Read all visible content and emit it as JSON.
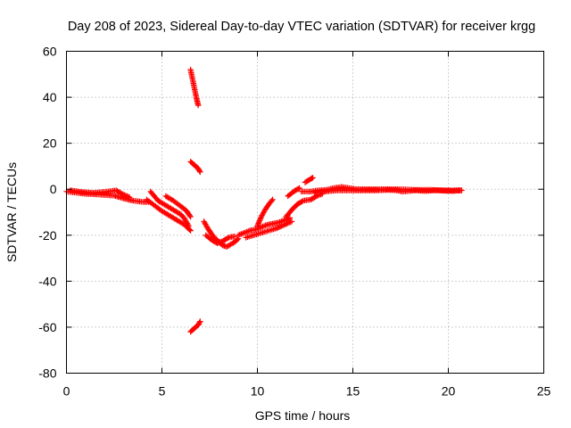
{
  "chart_data": {
    "type": "scatter",
    "title": "Day 208 of 2023, Sidereal Day-to-day VTEC variation (SDTVAR) for receiver krgg",
    "xlabel": "GPS time / hours",
    "ylabel": "SDTVAR / TECUs",
    "xlim": [
      0,
      25
    ],
    "ylim": [
      -80,
      60
    ],
    "xticks": [
      0,
      5,
      10,
      15,
      20,
      25
    ],
    "yticks": [
      -80,
      -60,
      -40,
      -20,
      0,
      20,
      40,
      60
    ],
    "grid": true,
    "marker": "+",
    "colors": {
      "series": "#ff0000",
      "grid": "#a0a0a0",
      "axis": "#000000"
    },
    "series": [
      {
        "name": "SDTVAR",
        "segments": [
          [
            [
              0.0,
              -1.0
            ],
            [
              0.5,
              -1.5
            ],
            [
              1.0,
              -2.0
            ],
            [
              1.5,
              -2.2
            ],
            [
              2.0,
              -2.5
            ],
            [
              2.5,
              -2.8
            ],
            [
              3.0,
              -4.0
            ],
            [
              3.5,
              -5.0
            ],
            [
              4.0,
              -5.5
            ],
            [
              4.3,
              -5.5
            ]
          ],
          [
            [
              0.2,
              -0.5
            ],
            [
              0.8,
              -1.2
            ],
            [
              1.4,
              -1.6
            ],
            [
              2.2,
              -1.0
            ],
            [
              2.6,
              -0.5
            ],
            [
              2.9,
              -2.0
            ],
            [
              3.3,
              -3.5
            ]
          ],
          [
            [
              4.4,
              -1.0
            ],
            [
              4.6,
              -3.0
            ],
            [
              4.8,
              -5.0
            ],
            [
              5.2,
              -7.0
            ],
            [
              5.6,
              -9.0
            ],
            [
              6.0,
              -11.0
            ],
            [
              6.2,
              -13.0
            ],
            [
              6.4,
              -16.0
            ]
          ],
          [
            [
              4.2,
              -4.5
            ],
            [
              4.6,
              -7.0
            ],
            [
              5.0,
              -9.5
            ],
            [
              5.4,
              -11.5
            ],
            [
              5.8,
              -13.5
            ],
            [
              6.2,
              -15.5
            ],
            [
              6.5,
              -18.0
            ]
          ],
          [
            [
              5.2,
              -3.0
            ],
            [
              5.6,
              -5.0
            ],
            [
              6.0,
              -7.5
            ],
            [
              6.3,
              -9.5
            ],
            [
              6.5,
              -12.0
            ]
          ],
          [
            [
              6.5,
              52.0
            ],
            [
              6.6,
              48.0
            ],
            [
              6.7,
              44.0
            ],
            [
              6.8,
              40.0
            ],
            [
              6.9,
              36.5
            ]
          ],
          [
            [
              6.5,
              12.0
            ],
            [
              6.7,
              10.5
            ],
            [
              6.9,
              9.0
            ],
            [
              7.0,
              7.5
            ]
          ],
          [
            [
              6.5,
              -62.0
            ],
            [
              6.7,
              -60.5
            ],
            [
              6.9,
              -59.0
            ],
            [
              7.0,
              -57.5
            ]
          ],
          [
            [
              7.2,
              -14.0
            ],
            [
              7.4,
              -17.0
            ],
            [
              7.6,
              -19.5
            ],
            [
              7.8,
              -21.5
            ],
            [
              8.0,
              -23.0
            ],
            [
              8.2,
              -24.5
            ],
            [
              8.4,
              -25.0
            ],
            [
              8.6,
              -24.0
            ],
            [
              8.8,
              -23.0
            ],
            [
              9.0,
              -21.5
            ]
          ],
          [
            [
              7.3,
              -20.0
            ],
            [
              7.6,
              -22.0
            ],
            [
              7.9,
              -23.5
            ],
            [
              8.2,
              -22.5
            ],
            [
              8.5,
              -21.0
            ],
            [
              8.8,
              -20.5
            ]
          ],
          [
            [
              9.0,
              -20.0
            ],
            [
              9.3,
              -19.0
            ],
            [
              9.6,
              -18.0
            ],
            [
              9.9,
              -17.5
            ],
            [
              10.2,
              -16.5
            ],
            [
              10.5,
              -15.5
            ],
            [
              10.8,
              -15.0
            ],
            [
              11.1,
              -14.5
            ],
            [
              11.4,
              -13.5
            ],
            [
              11.7,
              -12.5
            ]
          ],
          [
            [
              9.4,
              -21.0
            ],
            [
              9.8,
              -20.0
            ],
            [
              10.2,
              -19.0
            ],
            [
              10.6,
              -18.0
            ],
            [
              11.0,
              -17.0
            ],
            [
              11.4,
              -15.5
            ],
            [
              11.8,
              -14.0
            ]
          ],
          [
            [
              10.0,
              -16.0
            ],
            [
              10.2,
              -12.0
            ],
            [
              10.4,
              -9.0
            ],
            [
              10.6,
              -6.5
            ],
            [
              10.8,
              -4.5
            ]
          ],
          [
            [
              11.5,
              -12.0
            ],
            [
              11.8,
              -9.0
            ],
            [
              12.1,
              -6.5
            ],
            [
              12.4,
              -5.0
            ],
            [
              12.8,
              -4.5
            ],
            [
              13.1,
              -3.0
            ],
            [
              13.4,
              -2.0
            ]
          ],
          [
            [
              11.6,
              -3.0
            ],
            [
              11.9,
              -1.0
            ],
            [
              12.2,
              0.5
            ]
          ],
          [
            [
              12.5,
              3.0
            ],
            [
              12.8,
              4.5
            ],
            [
              12.9,
              5.0
            ]
          ],
          [
            [
              12.3,
              -1.0
            ],
            [
              12.8,
              -1.0
            ],
            [
              13.2,
              -0.5
            ],
            [
              13.6,
              -0.3
            ],
            [
              14.0,
              0.5
            ],
            [
              14.4,
              1.0
            ],
            [
              14.8,
              0.5
            ],
            [
              15.2,
              0.0
            ],
            [
              15.6,
              0.0
            ],
            [
              16.0,
              0.0
            ],
            [
              16.5,
              0.0
            ],
            [
              17.0,
              0.0
            ],
            [
              17.5,
              0.0
            ],
            [
              18.0,
              -0.2
            ],
            [
              18.5,
              -0.3
            ],
            [
              19.0,
              -0.3
            ],
            [
              19.5,
              -0.4
            ],
            [
              20.0,
              -0.5
            ],
            [
              20.5,
              -0.5
            ],
            [
              20.7,
              -0.5
            ]
          ],
          [
            [
              13.0,
              -1.5
            ],
            [
              13.5,
              -1.0
            ],
            [
              14.2,
              -0.5
            ],
            [
              14.9,
              -0.5
            ],
            [
              15.5,
              -0.5
            ],
            [
              16.2,
              -0.5
            ],
            [
              16.8,
              -0.3
            ],
            [
              17.3,
              -0.5
            ],
            [
              17.6,
              -1.0
            ],
            [
              18.3,
              -0.5
            ],
            [
              18.8,
              -0.8
            ],
            [
              19.3,
              -0.5
            ],
            [
              20.2,
              -0.8
            ],
            [
              20.6,
              -0.5
            ]
          ]
        ]
      }
    ]
  }
}
